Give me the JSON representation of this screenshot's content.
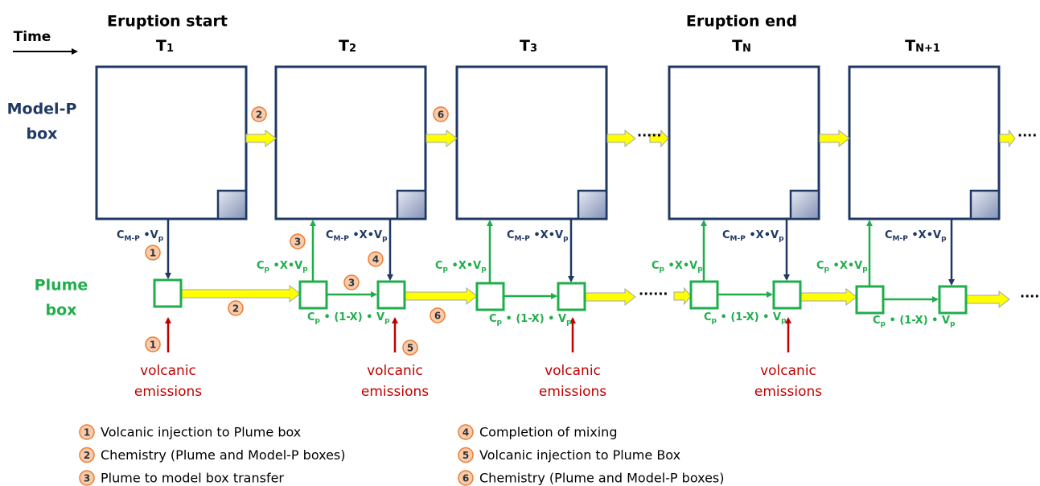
{
  "time_label": "Time",
  "phase_labels": [
    "Eruption start",
    "Eruption end"
  ],
  "time_steps": [
    {
      "base": "T",
      "sub": "1"
    },
    {
      "base": "T",
      "sub": "2"
    },
    {
      "base": "T",
      "sub": "3"
    },
    {
      "base": "T",
      "sub": "N"
    },
    {
      "base": "T",
      "sub": "N+1"
    }
  ],
  "row_labels": [
    [
      "Model-P",
      "box"
    ],
    [
      "Plume",
      "box"
    ]
  ],
  "formulas": [
    [
      "C",
      "M-P",
      " •V",
      "p"
    ],
    [
      "C",
      "p",
      " •X•V",
      "p"
    ],
    [
      "C",
      "M-P",
      " •X•V",
      "p"
    ],
    [
      "C",
      "p",
      " • (1-X) • V",
      "p"
    ],
    [
      "C",
      "p",
      " •X•V",
      "p"
    ],
    [
      "C",
      "M-P",
      " •X•V",
      "p"
    ],
    [
      "C",
      "p",
      " • (1-X) • V",
      "p"
    ],
    [
      "C",
      "p",
      " •X•V",
      "p"
    ],
    [
      "C",
      "M-P",
      " •X•V",
      "p"
    ],
    [
      "C",
      "p",
      " • (1-X) • V",
      "p"
    ],
    [
      "C",
      "p",
      " •X•V",
      "p"
    ],
    [
      "C",
      "M-P",
      " •X•V",
      "p"
    ],
    [
      "C",
      "p",
      " • (1-X) • V",
      "p"
    ]
  ],
  "step_markers": [
    "2",
    "6",
    "1",
    "3",
    "4",
    "3",
    "2",
    "6",
    "1",
    "5"
  ],
  "emission_labels": [
    [
      "volcanic",
      "emissions"
    ],
    [
      "volcanic",
      "emissions"
    ],
    [
      "volcanic",
      "emissions"
    ],
    [
      "volcanic",
      "emissions"
    ]
  ],
  "continuation_marks": [
    "·····",
    "····",
    "······",
    "····"
  ],
  "legend": [
    {
      "number": "1",
      "text": "Volcanic injection to Plume box"
    },
    {
      "number": "2",
      "text": "Chemistry (Plume and Model-P boxes)"
    },
    {
      "number": "3",
      "text": "Plume to model box transfer"
    },
    {
      "number": "4",
      "text": "Completion of mixing"
    },
    {
      "number": "5",
      "text": "Volcanic injection to Plume Box"
    },
    {
      "number": "6",
      "text": "Chemistry (Plume and Model-P boxes)"
    }
  ]
}
